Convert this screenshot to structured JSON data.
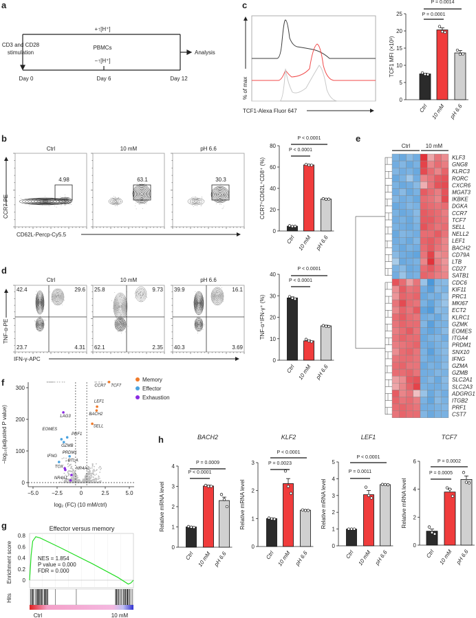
{
  "panel_labels": [
    "a",
    "b",
    "c",
    "d",
    "e",
    "f",
    "g",
    "h"
  ],
  "a": {
    "top": "+↑[H⁺]",
    "middle": "PBMCs",
    "bottom": "−↑[H⁺]",
    "start_line1": "CD3 and CD28",
    "start_line2": "stimulation",
    "end": "Analysis",
    "days": [
      "Day 0",
      "Day 6",
      "Day 12"
    ]
  },
  "c_hist": {
    "ylabel": "% of max",
    "xlabel": "TCF1-Alexa Fluor 647",
    "colors": [
      "#3a3a3a",
      "#f04848",
      "#c8c8c8"
    ]
  },
  "b_flow": {
    "titles": [
      "Ctrl",
      "10 mM",
      "pH 6.6"
    ],
    "gates": [
      "4.98",
      "63.1",
      "30.3"
    ],
    "xlabel": "CD62L-Percp-Cy5.5",
    "ylabel": "CCR7-PE"
  },
  "d_flow": {
    "titles": [
      "Ctrl",
      "10 mM",
      "pH 6.6"
    ],
    "quadrants": [
      [
        "42.4",
        "29.6",
        "23.7",
        "4.31"
      ],
      [
        "25.8",
        "9.73",
        "62.1",
        "2.35"
      ],
      [
        "39.9",
        "16.1",
        "40.3",
        "3.69"
      ]
    ],
    "xlabel": "IFN-γ-APC",
    "ylabel": "TNF-α-PE"
  },
  "colors": {
    "ctrl": "#2b2b2b",
    "mm10": "#f03c3c",
    "ph": "#d0d0d0",
    "memory": "#f07a2a",
    "effector": "#4aa3e0",
    "exhaustion": "#8a2be2",
    "gsea": "#22dd22"
  },
  "chart_data": [
    {
      "type": "bar",
      "title": "",
      "ylabel": "TCF1 MFI (×10³)",
      "categories": [
        "Ctrl",
        "10 mM",
        "pH 6.6"
      ],
      "ylim": [
        0,
        25
      ],
      "yticks": [
        "0",
        "5",
        "10",
        "15",
        "20",
        "25"
      ],
      "tick_values": [
        0,
        5,
        10,
        15,
        20,
        25
      ],
      "values": [
        7.5,
        20.3,
        13.6
      ],
      "sem": [
        0.2,
        0.6,
        0.7
      ],
      "points": [
        [
          7.8,
          7.4,
          7.3
        ],
        [
          21.3,
          19.8,
          19.6
        ],
        [
          14.4,
          13.2,
          13.3
        ]
      ],
      "comparisons": [
        {
          "label": "P = 0.0001",
          "from": 0,
          "to": 1
        },
        {
          "label": "P = 0.0014",
          "from": 0,
          "to": 2
        }
      ]
    },
    {
      "type": "bar",
      "title": "",
      "ylabel": "CCR7⁺CD62L⁺CD8⁺ (%)",
      "categories": [
        "Ctrl",
        "10 mM",
        "pH 6.6"
      ],
      "ylim": [
        0,
        80
      ],
      "yticks": [
        "0",
        "20",
        "40",
        "60",
        "80"
      ],
      "tick_values": [
        0,
        20,
        40,
        60,
        80
      ],
      "values": [
        4.5,
        62,
        30
      ],
      "sem": [
        0.4,
        0.5,
        0.4
      ],
      "points": [
        [
          4.9,
          4.3,
          4.4
        ],
        [
          62.5,
          61.8,
          61.7
        ],
        [
          30.3,
          29.8,
          29.9
        ]
      ],
      "comparisons": [
        {
          "label": "P < 0.0001",
          "from": 0,
          "to": 1
        },
        {
          "label": "P < 0.0001",
          "from": 0,
          "to": 2
        }
      ]
    },
    {
      "type": "bar",
      "title": "",
      "ylabel": "TNF-α⁺IFN-γ⁺ (%)",
      "categories": [
        "Ctrl",
        "10 mM",
        "pH 6.6"
      ],
      "ylim": [
        0,
        40
      ],
      "yticks": [
        "0",
        "10",
        "20",
        "30",
        "40"
      ],
      "tick_values": [
        0,
        10,
        20,
        30,
        40
      ],
      "values": [
        29,
        9,
        16
      ],
      "sem": [
        0.5,
        0.4,
        0.3
      ],
      "points": [
        [
          29.6,
          28.9,
          28.5
        ],
        [
          9.7,
          9.0,
          8.6
        ],
        [
          16.1,
          15.8,
          15.7
        ]
      ],
      "comparisons": [
        {
          "label": "P < 0.0001",
          "from": 0,
          "to": 1
        },
        {
          "label": "P < 0.0001",
          "from": 0,
          "to": 2
        }
      ]
    },
    {
      "type": "bar",
      "title": "BACH2",
      "ylabel": "Relative mRNA level",
      "categories": [
        "Ctrl",
        "10 mM",
        "pH 6.6"
      ],
      "ylim": [
        0,
        4
      ],
      "yticks": [
        "0",
        "1",
        "2",
        "3",
        "4"
      ],
      "tick_values": [
        0,
        1,
        2,
        3,
        4
      ],
      "values": [
        1.0,
        3.02,
        2.3
      ],
      "sem": [
        0.02,
        0.04,
        0.17
      ],
      "points": [
        [
          1.02,
          0.99,
          0.98
        ],
        [
          3.05,
          3.0,
          3.0
        ],
        [
          2.6,
          2.35,
          2.0
        ]
      ],
      "comparisons": [
        {
          "label": "P = 0.0009",
          "from": 0,
          "to": 2
        },
        {
          "label": "P < 0.0001",
          "from": 0,
          "to": 1
        }
      ]
    },
    {
      "type": "bar",
      "title": "KLF2",
      "ylabel": "Relative mRNA level",
      "categories": [
        "Ctrl",
        "10 mM",
        "pH 6.6"
      ],
      "ylim": [
        0,
        3
      ],
      "yticks": [
        "0",
        "1",
        "2",
        "3"
      ],
      "tick_values": [
        0,
        1,
        2,
        3
      ],
      "values": [
        1.0,
        2.25,
        1.3
      ],
      "sem": [
        0.02,
        0.18,
        0.02
      ],
      "points": [
        [
          1.02,
          0.99,
          0.98
        ],
        [
          2.7,
          2.15,
          1.9
        ],
        [
          1.31,
          1.29,
          1.29
        ]
      ],
      "comparisons": [
        {
          "label": "P < 0.0001",
          "from": 0,
          "to": 2
        },
        {
          "label": "P = 0.0023",
          "from": 0,
          "to": 1
        }
      ]
    },
    {
      "type": "bar",
      "title": "LEF1",
      "ylabel": "Relative mRNA level",
      "categories": [
        "Ctrl",
        "10 mM",
        "pH 6.6"
      ],
      "ylim": [
        0,
        5
      ],
      "yticks": [
        "0",
        "1",
        "2",
        "3",
        "4",
        "5"
      ],
      "tick_values": [
        0,
        1,
        2,
        3,
        4,
        5
      ],
      "values": [
        1.0,
        3.05,
        3.65
      ],
      "sem": [
        0.01,
        0.25,
        0.02
      ],
      "points": [
        [
          1.0,
          1.0,
          1.0
        ],
        [
          3.5,
          3.0,
          2.85
        ],
        [
          3.66,
          3.65,
          3.64
        ]
      ],
      "comparisons": [
        {
          "label": "P < 0.0001",
          "from": 0,
          "to": 2
        },
        {
          "label": "P = 0.0011",
          "from": 0,
          "to": 1
        }
      ]
    },
    {
      "type": "bar",
      "title": "TCF7",
      "ylabel": "Relative mRNA level",
      "categories": [
        "Ctrl",
        "10 mM",
        "pH 6.6"
      ],
      "ylim": [
        0,
        6
      ],
      "yticks": [
        "0",
        "2",
        "4",
        "6"
      ],
      "tick_values": [
        0,
        2,
        4,
        6
      ],
      "values": [
        1.0,
        3.8,
        4.7
      ],
      "sem": [
        0.15,
        0.2,
        0.25
      ],
      "points": [
        [
          1.3,
          0.9,
          0.8
        ],
        [
          4.1,
          4.0,
          3.5
        ],
        [
          5.2,
          4.5,
          4.45
        ]
      ],
      "comparisons": [
        {
          "label": "P = 0.0002",
          "from": 0,
          "to": 2
        },
        {
          "label": "P = 0.0005",
          "from": 0,
          "to": 1
        }
      ]
    },
    {
      "type": "heatmap",
      "groups": [
        "Ctrl",
        "10 mM"
      ],
      "genes": [
        "KLF3",
        "GNG8",
        "KLRC3",
        "RORC",
        "CXCR6",
        "MGAT3",
        "IKBKE",
        "DGKA",
        "CCR7",
        "TCF7",
        "SELL",
        "NELL2",
        "LEF1",
        "BACH2",
        "CD79A",
        "LTB",
        "CD27",
        "SATB1",
        "CDC6",
        "KIF11",
        "PRC1",
        "MKI67",
        "ECT2",
        "KLRC1",
        "GZMK",
        "EOMES",
        "ITGA4",
        "PRDM1",
        "SNX10",
        "IFNG",
        "GZMA",
        "GZMB",
        "SLC2A1",
        "SLC2A3",
        "ADGRG1",
        "ITGB2",
        "PRF1",
        "CST7"
      ],
      "values": [
        [
          -1.2,
          -1.4,
          -1.0,
          -1.3,
          2.0,
          0.6,
          1.2,
          0.9
        ],
        [
          -1.3,
          -1.1,
          -1.4,
          -1.2,
          1.8,
          1.0,
          1.3,
          1.1
        ],
        [
          -1.1,
          -1.3,
          -1.2,
          -1.4,
          1.7,
          1.3,
          1.0,
          1.4
        ],
        [
          -1.4,
          -1.2,
          -0.7,
          -1.3,
          1.0,
          1.2,
          1.5,
          1.6
        ],
        [
          -1.2,
          -1.4,
          -1.3,
          -1.0,
          0.5,
          1.2,
          1.6,
          1.7
        ],
        [
          -1.3,
          -1.0,
          -1.4,
          -1.2,
          1.5,
          1.3,
          1.1,
          1.6
        ],
        [
          -1.1,
          -1.3,
          -1.2,
          -1.4,
          1.3,
          1.2,
          1.0,
          1.7
        ],
        [
          -1.4,
          -1.3,
          -1.1,
          -1.2,
          1.4,
          1.3,
          1.2,
          1.3
        ],
        [
          -1.2,
          -1.4,
          -1.3,
          -1.0,
          1.5,
          1.4,
          1.3,
          1.1
        ],
        [
          -1.3,
          -1.2,
          -1.4,
          -1.1,
          1.5,
          1.5,
          1.3,
          1.2
        ],
        [
          -1.2,
          -1.3,
          -1.4,
          -1.2,
          1.6,
          1.4,
          1.2,
          1.3
        ],
        [
          -1.4,
          -1.1,
          -1.2,
          -1.3,
          1.3,
          1.3,
          1.5,
          1.2
        ],
        [
          -1.3,
          -1.2,
          -1.4,
          -1.1,
          1.4,
          1.5,
          1.3,
          1.0
        ],
        [
          -1.2,
          -1.4,
          -1.2,
          -1.3,
          1.3,
          1.5,
          1.2,
          1.0
        ],
        [
          -1.0,
          -1.3,
          -1.4,
          -1.5,
          1.2,
          1.8,
          0.9,
          1.0
        ],
        [
          -0.6,
          -1.4,
          -1.3,
          -1.2,
          1.0,
          2.0,
          1.1,
          0.8
        ],
        [
          -1.2,
          -1.0,
          -1.4,
          -1.3,
          1.3,
          1.5,
          1.2,
          0.9
        ],
        [
          -1.3,
          -0.8,
          -1.3,
          -1.2,
          1.4,
          1.3,
          1.1,
          1.0
        ],
        [
          1.6,
          1.3,
          0.7,
          1.2,
          -0.8,
          -1.8,
          -1.1,
          -1.0
        ],
        [
          0.9,
          1.5,
          1.2,
          1.3,
          -1.3,
          -1.6,
          -1.0,
          -1.2
        ],
        [
          0.8,
          1.4,
          1.3,
          1.4,
          -1.4,
          -1.2,
          -1.3,
          -0.9
        ],
        [
          1.2,
          1.7,
          1.3,
          1.2,
          -1.2,
          -1.5,
          -1.1,
          -0.8
        ],
        [
          1.0,
          1.4,
          1.2,
          1.5,
          -1.5,
          -1.7,
          -1.0,
          -1.1
        ],
        [
          1.3,
          1.5,
          1.3,
          1.2,
          -1.3,
          -1.2,
          -1.4,
          -1.0
        ],
        [
          1.2,
          1.4,
          1.3,
          1.3,
          -1.1,
          -1.6,
          -1.2,
          -1.2
        ],
        [
          1.1,
          1.3,
          1.5,
          1.2,
          -1.3,
          -1.5,
          -1.3,
          -1.0
        ],
        [
          1.2,
          1.4,
          1.3,
          1.3,
          -1.4,
          -1.2,
          -1.1,
          -1.3
        ],
        [
          1.1,
          1.2,
          1.3,
          1.4,
          -1.3,
          -1.4,
          -1.2,
          -1.1
        ],
        [
          0.9,
          1.3,
          1.4,
          1.2,
          -1.2,
          -1.6,
          -1.2,
          -1.0
        ],
        [
          1.2,
          1.3,
          1.3,
          1.2,
          -1.2,
          -1.4,
          -1.3,
          -1.1
        ],
        [
          1.3,
          1.4,
          1.2,
          1.2,
          -1.4,
          -1.2,
          -1.3,
          -1.0
        ],
        [
          1.3,
          1.3,
          1.4,
          1.2,
          -1.3,
          -1.3,
          -1.1,
          -1.2
        ],
        [
          0.7,
          0.9,
          1.5,
          1.6,
          -1.3,
          -1.1,
          -1.4,
          -1.0
        ],
        [
          0.6,
          1.0,
          1.4,
          1.8,
          -1.2,
          -1.3,
          -1.3,
          -1.1
        ],
        [
          1.5,
          1.0,
          1.2,
          0.3,
          -0.8,
          -1.4,
          -1.1,
          -1.3
        ],
        [
          1.4,
          1.2,
          1.3,
          1.1,
          -1.2,
          -1.5,
          -1.0,
          -1.2
        ],
        [
          1.3,
          1.4,
          1.3,
          1.2,
          -1.3,
          -1.3,
          -1.2,
          -1.1
        ],
        [
          1.2,
          1.4,
          1.3,
          1.3,
          -1.1,
          -1.4,
          -1.2,
          -1.2
        ]
      ]
    },
    {
      "type": "scatter",
      "title": "",
      "xlabel": "log₂ (FC) (10 mM/ctrl)",
      "ylabel": "−log₁₀(adjusted P value)",
      "xlim": [
        -5.5,
        5.5
      ],
      "ylim": [
        0,
        320
      ],
      "xticks": [
        "−5.0",
        "−2.5",
        "0",
        "2.5",
        "5.0"
      ],
      "xtick_values": [
        -5,
        -2.5,
        0,
        2.5,
        5
      ],
      "yticks": [
        "0",
        "100",
        "200",
        "300"
      ],
      "ytick_values": [
        0,
        100,
        200,
        300
      ],
      "legend": [
        {
          "name": "Memory",
          "color": "#f07a2a"
        },
        {
          "name": "Effector",
          "color": "#4aa3e0"
        },
        {
          "name": "Exhaustion",
          "color": "#8a2be2"
        }
      ],
      "labeled": [
        {
          "gene": "CCR7",
          "group": "Memory",
          "x": 2.9,
          "y": 318
        },
        {
          "gene": "TCF7",
          "group": "Memory",
          "x": 2.9,
          "y": 318
        },
        {
          "gene": "LEF1",
          "group": "Memory",
          "x": 1.65,
          "y": 240
        },
        {
          "gene": "BACH2",
          "group": "Memory",
          "x": 1.6,
          "y": 228
        },
        {
          "gene": "SELL",
          "group": "Memory",
          "x": 1.15,
          "y": 186
        },
        {
          "gene": "LAG3",
          "group": "Exhaustion",
          "x": -1.85,
          "y": 222
        },
        {
          "gene": "EOMES",
          "group": "Effector",
          "x": -2.05,
          "y": 137
        },
        {
          "gene": "PRF1",
          "group": "Effector",
          "x": -1.45,
          "y": 143
        },
        {
          "gene": "GZMB",
          "group": "Effector",
          "x": -1.8,
          "y": 128
        },
        {
          "gene": "PRDM1",
          "group": "Effector",
          "x": -1.2,
          "y": 83
        },
        {
          "gene": "IFNG",
          "group": "Effector",
          "x": -2.3,
          "y": 65
        },
        {
          "gene": "BTLA",
          "group": "Exhaustion",
          "x": -1.7,
          "y": 45
        },
        {
          "gene": "TOX",
          "group": "Exhaustion",
          "x": -1.65,
          "y": 40
        },
        {
          "gene": "NR4A2",
          "group": "Exhaustion",
          "x": -1.0,
          "y": 24
        },
        {
          "gene": "NR4A1",
          "group": "Exhaustion",
          "x": -1.1,
          "y": 7
        }
      ]
    },
    {
      "type": "line",
      "title": "Effector versus memory",
      "ylabel": "Enrichment score",
      "hits_label": "Hits",
      "ylim": [
        -0.1,
        0.85
      ],
      "yticks": [
        "0",
        "0.2",
        "0.4",
        "0.6",
        "0.8"
      ],
      "ytick_values": [
        0,
        0.2,
        0.4,
        0.6,
        0.8
      ],
      "curve": [
        [
          0,
          0
        ],
        [
          0.015,
          0.45
        ],
        [
          0.03,
          0.7
        ],
        [
          0.06,
          0.78
        ],
        [
          0.1,
          0.76
        ],
        [
          0.3,
          0.58
        ],
        [
          0.6,
          0.3
        ],
        [
          0.85,
          0.05
        ],
        [
          0.95,
          -0.07
        ],
        [
          0.975,
          -0.05
        ],
        [
          1,
          0
        ]
      ],
      "stats": [
        "NES = 1.854",
        "P value = 0.000",
        "FDR = 0.000"
      ],
      "ends": [
        "Ctrl",
        "10 mM"
      ]
    }
  ]
}
